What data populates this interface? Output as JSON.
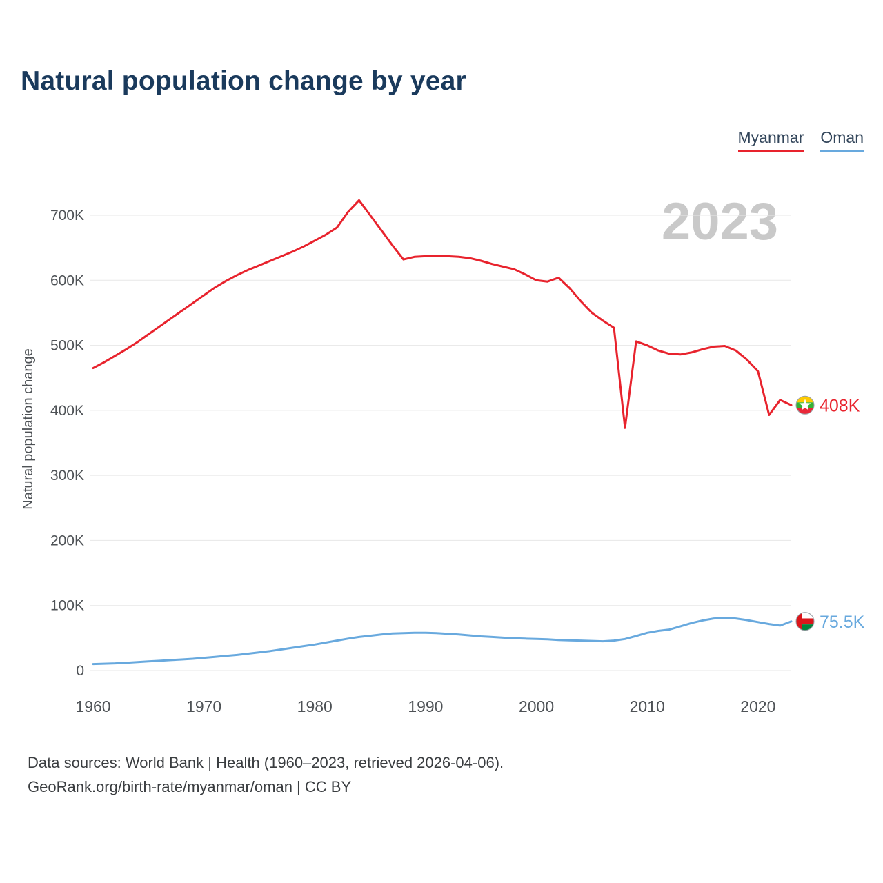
{
  "chart_data": {
    "type": "line",
    "title": "Natural population change by year",
    "ylabel": "Natural population change",
    "xlabel": "",
    "watermark_year": "2023",
    "unit": "persons, values stored in thousands",
    "grid": true,
    "legend_position": "top-right",
    "x_range": [
      1960,
      2023
    ],
    "y_range": [
      0,
      700
    ],
    "x_ticks": [
      1960,
      1970,
      1980,
      1990,
      2000,
      2010,
      2020
    ],
    "y_ticks": [
      0,
      100,
      200,
      300,
      400,
      500,
      600,
      700
    ],
    "y_tick_labels": [
      "0",
      "100K",
      "200K",
      "300K",
      "400K",
      "500K",
      "600K",
      "700K"
    ],
    "x_years": [
      1960,
      1961,
      1962,
      1963,
      1964,
      1965,
      1966,
      1967,
      1968,
      1969,
      1970,
      1971,
      1972,
      1973,
      1974,
      1975,
      1976,
      1977,
      1978,
      1979,
      1980,
      1981,
      1982,
      1983,
      1984,
      1985,
      1986,
      1987,
      1988,
      1989,
      1990,
      1991,
      1992,
      1993,
      1994,
      1995,
      1996,
      1997,
      1998,
      1999,
      2000,
      2001,
      2002,
      2003,
      2004,
      2005,
      2006,
      2007,
      2008,
      2009,
      2010,
      2011,
      2012,
      2013,
      2014,
      2015,
      2016,
      2017,
      2018,
      2019,
      2020,
      2021,
      2022,
      2023
    ],
    "series": [
      {
        "name": "Myanmar",
        "color": "#e8232d",
        "end_label": "408K",
        "values_thousands": [
          465,
          474,
          484,
          494,
          505,
          517,
          529,
          541,
          553,
          565,
          577,
          589,
          599,
          608,
          616,
          623,
          630,
          637,
          644,
          652,
          661,
          670,
          681,
          705,
          723,
          700,
          677,
          654,
          632,
          636,
          637,
          638,
          637,
          636,
          634,
          630,
          625,
          621,
          617,
          609,
          600,
          598,
          604,
          588,
          568,
          550,
          538,
          527,
          373,
          506,
          500,
          492,
          487,
          486,
          489,
          494,
          498,
          499,
          492,
          478,
          460,
          393,
          416,
          408
        ]
      },
      {
        "name": "Oman",
        "color": "#68a9de",
        "end_label": "75.5K",
        "values_thousands": [
          10,
          10.5,
          11,
          12,
          13,
          14,
          15,
          16,
          17,
          18,
          19.5,
          21,
          22.5,
          24,
          26,
          28,
          30,
          32.5,
          35,
          37.5,
          40,
          43,
          46,
          49,
          51.5,
          53.5,
          55.5,
          57,
          57.5,
          58,
          58,
          57.5,
          56.5,
          55.5,
          54,
          52.5,
          51.5,
          50.5,
          49.5,
          49,
          48.5,
          48,
          47,
          46.5,
          46,
          45.5,
          45,
          46,
          48.5,
          53,
          58,
          61,
          63,
          68,
          73,
          77,
          80,
          81,
          80,
          77.5,
          74.5,
          71.5,
          69,
          75.5
        ]
      }
    ]
  },
  "footer": {
    "line1": "Data sources: World Bank | Health (1960–2023, retrieved 2026-04-06).",
    "line2": "GeoRank.org/birth-rate/myanmar/oman | CC BY"
  }
}
